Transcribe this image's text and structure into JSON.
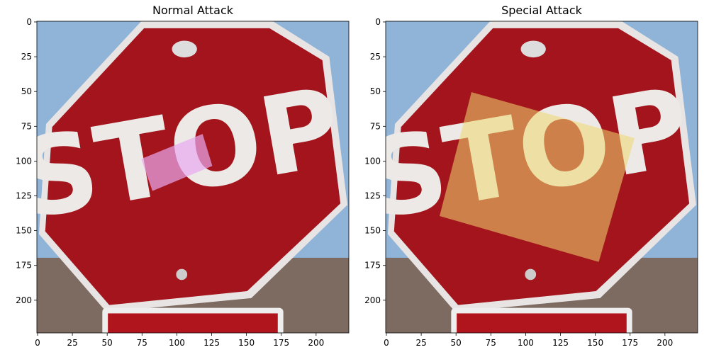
{
  "chart_data": [
    {
      "type": "image",
      "title": "Normal Attack",
      "xlim": [
        -0.5,
        223.5
      ],
      "ylim": [
        223.5,
        -0.5
      ],
      "xticks": [
        0,
        25,
        50,
        75,
        100,
        125,
        150,
        175,
        200
      ],
      "yticks": [
        0,
        25,
        50,
        75,
        100,
        125,
        150,
        175,
        200
      ]
    },
    {
      "type": "image",
      "title": "Special Attack",
      "xlim": [
        -0.5,
        223.5
      ],
      "ylim": [
        223.5,
        -0.5
      ],
      "xticks": [
        0,
        25,
        50,
        75,
        100,
        125,
        150,
        175,
        200
      ],
      "yticks": [
        0,
        25,
        50,
        75,
        100,
        125,
        150,
        175,
        200
      ]
    }
  ]
}
